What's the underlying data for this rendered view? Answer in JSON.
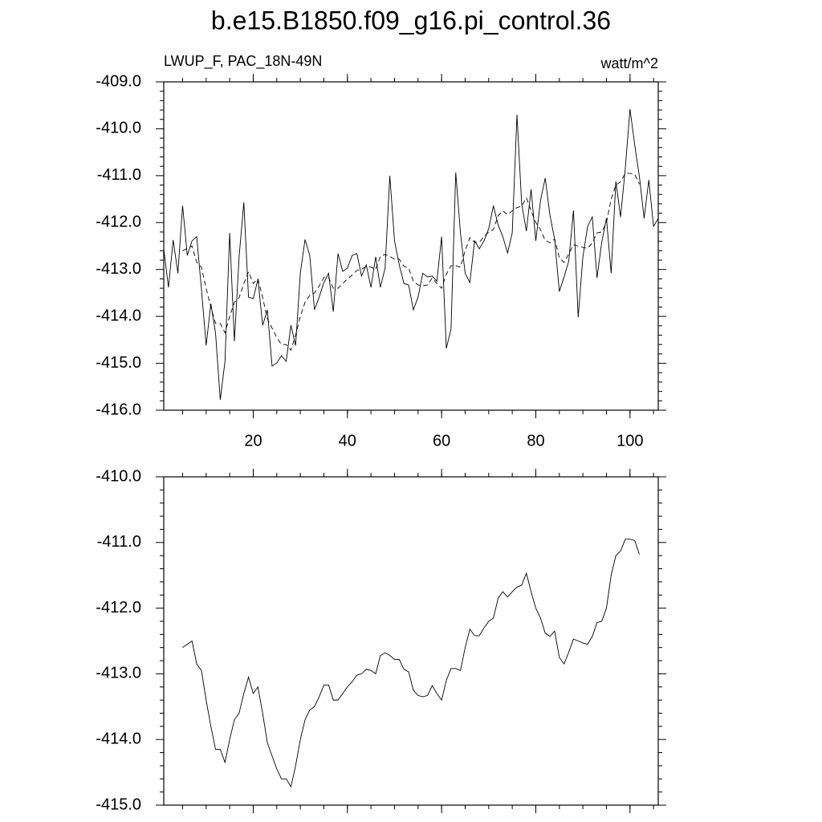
{
  "chart_data": [
    {
      "type": "line",
      "title": "b.e15.B1850.f09_g16.pi_control.36",
      "left_label": "LWUP_F, PAC_18N-49N",
      "right_label": "watt/m^2",
      "xlim": [
        1,
        106
      ],
      "xticks": [
        20,
        40,
        60,
        80,
        100
      ],
      "x_minor_per_major": 4,
      "xtick_labels": true,
      "ylim": [
        -416,
        -409
      ],
      "yticks": [
        {
          "value": -416,
          "label": "-416.0"
        },
        {
          "value": -415,
          "label": "-415.0"
        },
        {
          "value": -414,
          "label": "-414.0"
        },
        {
          "value": -413,
          "label": "-413.0"
        },
        {
          "value": -412,
          "label": "-412.0"
        },
        {
          "value": -411,
          "label": "-411.0"
        },
        {
          "value": -410,
          "label": "-410.0"
        },
        {
          "value": -409,
          "label": "-409.0"
        }
      ],
      "y_minor_per_major": 5,
      "grid": false,
      "series": [
        {
          "color": "#000000",
          "dash": false,
          "x": [
            1,
            2,
            3,
            4,
            5,
            6,
            7,
            8,
            9,
            10,
            11,
            12,
            13,
            14,
            15,
            16,
            17,
            18,
            19,
            20,
            21,
            22,
            23,
            24,
            25,
            26,
            27,
            28,
            29,
            30,
            31,
            32,
            33,
            34,
            35,
            36,
            37,
            38,
            39,
            40,
            41,
            42,
            43,
            44,
            45,
            46,
            47,
            48,
            49,
            50,
            51,
            52,
            53,
            54,
            55,
            56,
            57,
            58,
            59,
            60,
            61,
            62,
            63,
            64,
            65,
            66,
            67,
            68,
            69,
            70,
            71,
            72,
            73,
            74,
            75,
            76,
            77,
            78,
            79,
            80,
            81,
            82,
            83,
            84,
            85,
            86,
            87,
            88,
            89,
            90,
            91,
            92,
            93,
            94,
            95,
            96,
            97,
            98,
            99,
            100,
            101,
            102,
            103,
            104,
            105,
            106
          ],
          "values": [
            -412.56,
            -413.38,
            -412.37,
            -413.08,
            -411.64,
            -412.7,
            -412.39,
            -412.3,
            -413.42,
            -414.62,
            -413.73,
            -414.36,
            -415.78,
            -414.96,
            -412.22,
            -414.53,
            -412.73,
            -411.57,
            -413.59,
            -413.62,
            -413.21,
            -414.19,
            -413.86,
            -415.06,
            -414.99,
            -414.84,
            -414.96,
            -414.19,
            -414.62,
            -413.08,
            -412.36,
            -412.7,
            -413.86,
            -413.59,
            -413.28,
            -413.08,
            -413.9,
            -412.66,
            -413.04,
            -412.97,
            -412.7,
            -412.66,
            -413.14,
            -412.9,
            -413.38,
            -412.73,
            -413.38,
            -412.97,
            -411.0,
            -412.39,
            -412.9,
            -413.3,
            -413.33,
            -413.86,
            -413.59,
            -413.08,
            -413.16,
            -413.14,
            -413.25,
            -412.3,
            -414.68,
            -414.27,
            -410.93,
            -412.22,
            -413.08,
            -413.28,
            -412.39,
            -412.56,
            -412.39,
            -412.13,
            -411.64,
            -412.05,
            -412.3,
            -412.65,
            -412.22,
            -409.7,
            -411.6,
            -412.18,
            -411.29,
            -412.39,
            -411.53,
            -411.05,
            -411.84,
            -412.36,
            -413.47,
            -413.16,
            -412.82,
            -411.74,
            -414.02,
            -412.73,
            -412.08,
            -411.88,
            -413.18,
            -412.42,
            -411.91,
            -413.08,
            -411.12,
            -411.88,
            -410.85,
            -409.58,
            -410.34,
            -411.02,
            -411.91,
            -411.09,
            -412.08,
            -411.91
          ]
        },
        {
          "color": "#000000",
          "dash": true,
          "x": [
            5,
            6,
            7,
            8,
            9,
            10,
            11,
            12,
            13,
            14,
            15,
            16,
            17,
            18,
            19,
            20,
            21,
            22,
            23,
            24,
            25,
            26,
            27,
            28,
            29,
            30,
            31,
            32,
            33,
            34,
            35,
            36,
            37,
            38,
            39,
            40,
            41,
            42,
            43,
            44,
            45,
            46,
            47,
            48,
            49,
            50,
            51,
            52,
            53,
            54,
            55,
            56,
            57,
            58,
            59,
            60,
            61,
            62,
            63,
            64,
            65,
            66,
            67,
            68,
            69,
            70,
            71,
            72,
            73,
            74,
            75,
            76,
            77,
            78,
            79,
            80,
            81,
            82,
            83,
            84,
            85,
            86,
            87,
            88,
            89,
            90,
            91,
            92,
            93,
            94,
            95,
            96,
            97,
            98,
            99,
            100,
            101,
            102
          ],
          "values": [
            -412.6,
            -412.55,
            -412.5,
            -412.85,
            -412.95,
            -413.4,
            -413.8,
            -414.15,
            -414.15,
            -414.35,
            -414.0,
            -413.7,
            -413.6,
            -413.3,
            -413.05,
            -413.3,
            -413.2,
            -413.6,
            -414.05,
            -414.25,
            -414.45,
            -414.6,
            -414.6,
            -414.72,
            -414.4,
            -414.0,
            -413.7,
            -413.55,
            -413.5,
            -413.35,
            -413.17,
            -413.17,
            -413.4,
            -413.4,
            -413.3,
            -413.2,
            -413.12,
            -413.02,
            -413.0,
            -412.93,
            -412.95,
            -413.0,
            -412.72,
            -412.68,
            -412.72,
            -412.78,
            -412.78,
            -412.93,
            -412.97,
            -413.25,
            -413.33,
            -413.35,
            -413.33,
            -413.18,
            -413.3,
            -413.4,
            -413.1,
            -412.92,
            -412.92,
            -412.95,
            -412.6,
            -412.32,
            -412.42,
            -412.42,
            -412.3,
            -412.2,
            -412.15,
            -411.85,
            -411.75,
            -411.83,
            -411.75,
            -411.68,
            -411.65,
            -411.47,
            -411.75,
            -412.0,
            -412.15,
            -412.38,
            -412.43,
            -412.35,
            -412.75,
            -412.85,
            -412.67,
            -412.47,
            -412.5,
            -412.53,
            -412.55,
            -412.43,
            -412.22,
            -412.2,
            -412.0,
            -411.5,
            -411.2,
            -411.13,
            -410.95,
            -410.95,
            -410.97,
            -411.18
          ]
        }
      ]
    },
    {
      "type": "line",
      "xlim": [
        1,
        106
      ],
      "xticks": [
        20,
        40,
        60,
        80,
        100
      ],
      "x_minor_per_major": 4,
      "xtick_labels": false,
      "ylim": [
        -415,
        -410
      ],
      "yticks": [
        {
          "value": -415,
          "label": "-415.0"
        },
        {
          "value": -414,
          "label": "-414.0"
        },
        {
          "value": -413,
          "label": "-413.0"
        },
        {
          "value": -412,
          "label": "-412.0"
        },
        {
          "value": -411,
          "label": "-411.0"
        },
        {
          "value": -410,
          "label": "-410.0"
        }
      ],
      "y_minor_per_major": 5,
      "grid": false,
      "series": [
        {
          "color": "#000000",
          "dash": false,
          "x": [
            5,
            6,
            7,
            8,
            9,
            10,
            11,
            12,
            13,
            14,
            15,
            16,
            17,
            18,
            19,
            20,
            21,
            22,
            23,
            24,
            25,
            26,
            27,
            28,
            29,
            30,
            31,
            32,
            33,
            34,
            35,
            36,
            37,
            38,
            39,
            40,
            41,
            42,
            43,
            44,
            45,
            46,
            47,
            48,
            49,
            50,
            51,
            52,
            53,
            54,
            55,
            56,
            57,
            58,
            59,
            60,
            61,
            62,
            63,
            64,
            65,
            66,
            67,
            68,
            69,
            70,
            71,
            72,
            73,
            74,
            75,
            76,
            77,
            78,
            79,
            80,
            81,
            82,
            83,
            84,
            85,
            86,
            87,
            88,
            89,
            90,
            91,
            92,
            93,
            94,
            95,
            96,
            97,
            98,
            99,
            100,
            101,
            102
          ],
          "values": [
            -412.6,
            -412.55,
            -412.5,
            -412.85,
            -412.95,
            -413.4,
            -413.8,
            -414.15,
            -414.15,
            -414.35,
            -414.0,
            -413.7,
            -413.6,
            -413.3,
            -413.05,
            -413.3,
            -413.2,
            -413.6,
            -414.05,
            -414.25,
            -414.45,
            -414.6,
            -414.6,
            -414.72,
            -414.4,
            -414.0,
            -413.7,
            -413.55,
            -413.5,
            -413.35,
            -413.17,
            -413.17,
            -413.4,
            -413.4,
            -413.3,
            -413.2,
            -413.12,
            -413.02,
            -413.0,
            -412.93,
            -412.95,
            -413.0,
            -412.72,
            -412.68,
            -412.72,
            -412.78,
            -412.78,
            -412.93,
            -412.97,
            -413.25,
            -413.33,
            -413.35,
            -413.33,
            -413.18,
            -413.3,
            -413.4,
            -413.1,
            -412.92,
            -412.92,
            -412.95,
            -412.6,
            -412.32,
            -412.42,
            -412.42,
            -412.3,
            -412.2,
            -412.15,
            -411.85,
            -411.75,
            -411.83,
            -411.75,
            -411.68,
            -411.65,
            -411.47,
            -411.75,
            -412.0,
            -412.15,
            -412.38,
            -412.43,
            -412.35,
            -412.75,
            -412.85,
            -412.67,
            -412.47,
            -412.5,
            -412.53,
            -412.55,
            -412.43,
            -412.22,
            -412.2,
            -412.0,
            -411.5,
            -411.2,
            -411.13,
            -410.95,
            -410.95,
            -410.97,
            -411.18
          ]
        }
      ]
    }
  ]
}
